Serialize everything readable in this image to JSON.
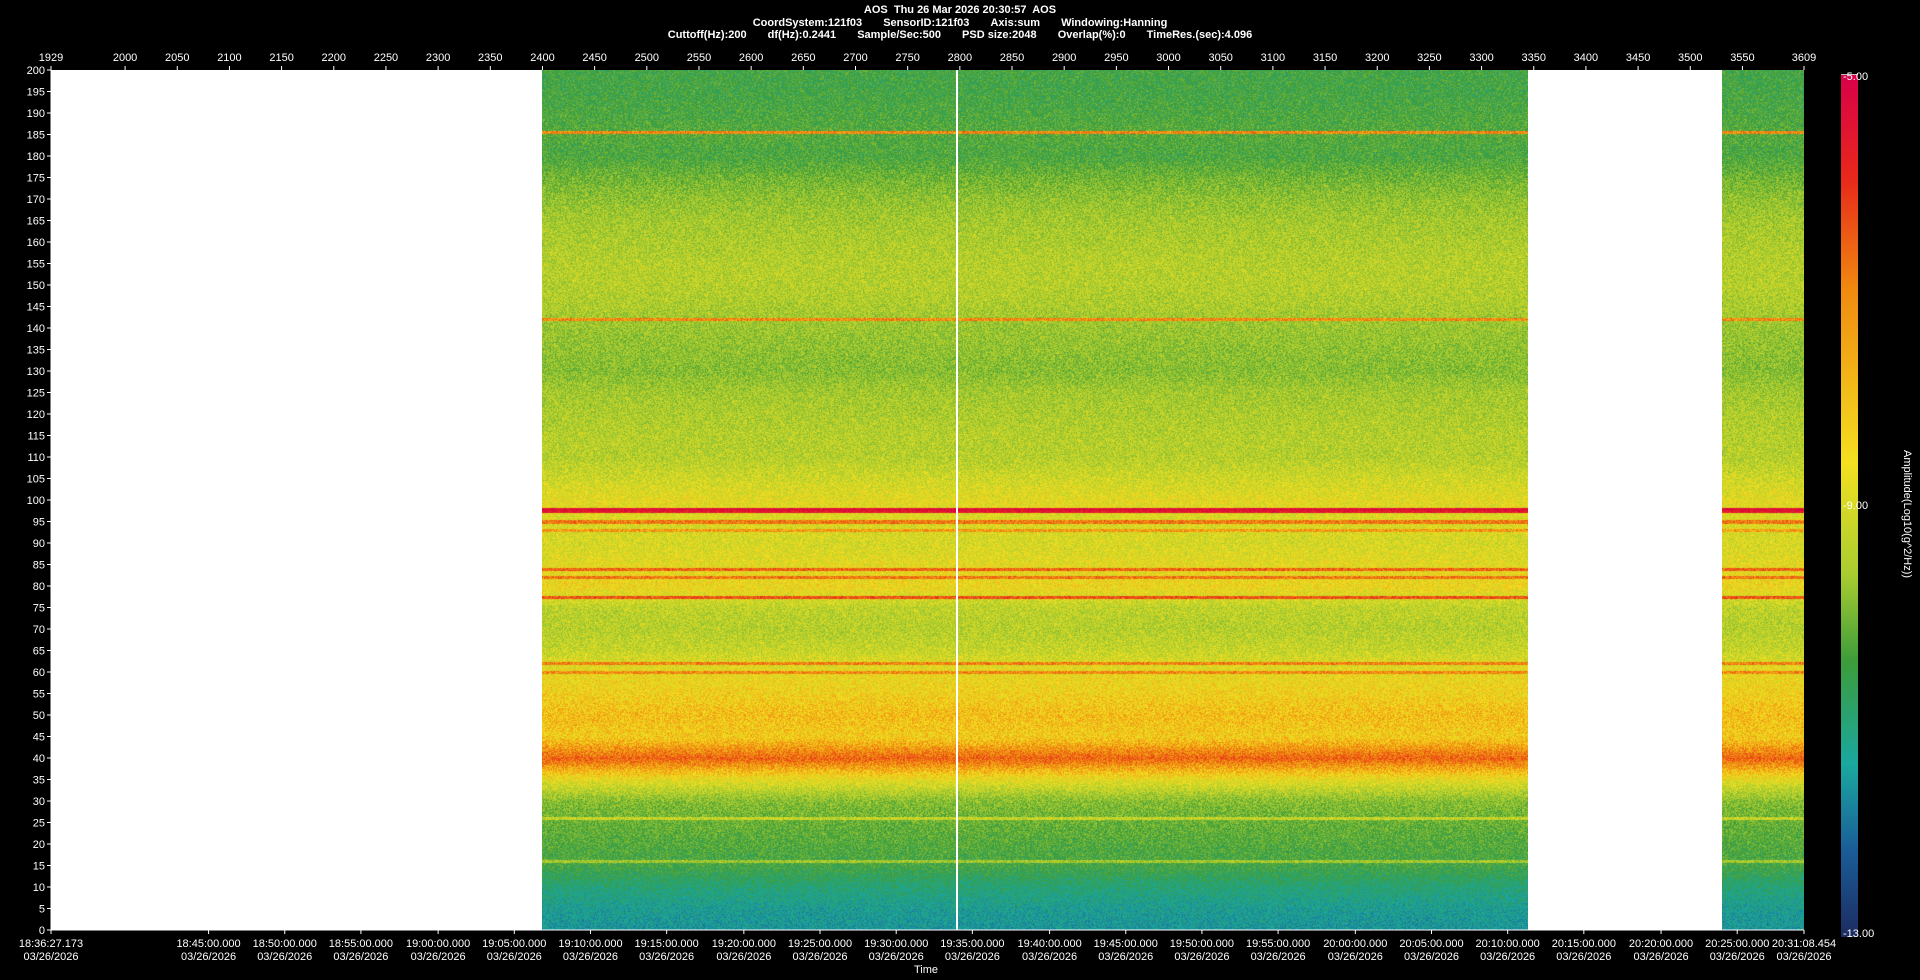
{
  "header": {
    "row1": [
      "AOS  Thu 26 Mar 2026 20:30:57  AOS"
    ],
    "row2": [
      "CoordSystem:121f03",
      "SensorID:121f03",
      "Axis:sum",
      "Windowing:Hanning"
    ],
    "row3": [
      "Cuttoff(Hz):200",
      "df(Hz):0.2441",
      "Sample/Sec:500",
      "PSD size:2048",
      "Overlap(%):0",
      "TimeRes.(sec):4.096"
    ]
  },
  "chart_data": {
    "type": "heatmap",
    "title": "AOS  Thu 26 Mar 2026 20:30:57  AOS",
    "xlabel": "Time",
    "ylabel": "",
    "ylim": [
      0,
      200
    ],
    "yticks": [
      0,
      5,
      10,
      15,
      20,
      25,
      30,
      35,
      40,
      45,
      50,
      55,
      60,
      65,
      70,
      75,
      80,
      85,
      90,
      95,
      100,
      105,
      110,
      115,
      120,
      125,
      130,
      135,
      140,
      145,
      150,
      155,
      160,
      165,
      170,
      175,
      180,
      185,
      190,
      195,
      200
    ],
    "top_axis": {
      "range": [
        1929,
        3609
      ],
      "ticks": [
        1929,
        2000,
        2050,
        2100,
        2150,
        2200,
        2250,
        2300,
        2350,
        2400,
        2450,
        2500,
        2550,
        2600,
        2650,
        2700,
        2750,
        2800,
        2850,
        2900,
        2950,
        3000,
        3050,
        3100,
        3150,
        3200,
        3250,
        3300,
        3350,
        3400,
        3450,
        3500,
        3550,
        3609
      ]
    },
    "bottom_axis": {
      "ticks": [
        {
          "value": 1929,
          "time": "18:36:27.173",
          "date": "03/26/2026"
        },
        {
          "value": 2080,
          "time": "18:45:00.000",
          "date": "03/26/2026"
        },
        {
          "value": 2153,
          "time": "18:50:00.000",
          "date": "03/26/2026"
        },
        {
          "value": 2226,
          "time": "18:55:00.000",
          "date": "03/26/2026"
        },
        {
          "value": 2300,
          "time": "19:00:00.000",
          "date": "03/26/2026"
        },
        {
          "value": 2373,
          "time": "19:05:00.000",
          "date": "03/26/2026"
        },
        {
          "value": 2446,
          "time": "19:10:00.000",
          "date": "03/26/2026"
        },
        {
          "value": 2519,
          "time": "19:15:00.000",
          "date": "03/26/2026"
        },
        {
          "value": 2593,
          "time": "19:20:00.000",
          "date": "03/26/2026"
        },
        {
          "value": 2666,
          "time": "19:25:00.000",
          "date": "03/26/2026"
        },
        {
          "value": 2739,
          "time": "19:30:00.000",
          "date": "03/26/2026"
        },
        {
          "value": 2812,
          "time": "19:35:00.000",
          "date": "03/26/2026"
        },
        {
          "value": 2886,
          "time": "19:40:00.000",
          "date": "03/26/2026"
        },
        {
          "value": 2959,
          "time": "19:45:00.000",
          "date": "03/26/2026"
        },
        {
          "value": 3032,
          "time": "19:50:00.000",
          "date": "03/26/2026"
        },
        {
          "value": 3105,
          "time": "19:55:00.000",
          "date": "03/26/2026"
        },
        {
          "value": 3179,
          "time": "20:00:00.000",
          "date": "03/26/2026"
        },
        {
          "value": 3252,
          "time": "20:05:00.000",
          "date": "03/26/2026"
        },
        {
          "value": 3325,
          "time": "20:10:00.000",
          "date": "03/26/2026"
        },
        {
          "value": 3398,
          "time": "20:15:00.000",
          "date": "03/26/2026"
        },
        {
          "value": 3472,
          "time": "20:20:00.000",
          "date": "03/26/2026"
        },
        {
          "value": 3545,
          "time": "20:25:00.000",
          "date": "03/26/2026"
        },
        {
          "value": 3609,
          "time": "20:31:08.454",
          "date": "03/26/2026"
        }
      ]
    },
    "data_segments": [
      [
        2400,
        3345
      ],
      [
        3530,
        3609
      ]
    ],
    "cursor_value": 2797,
    "colorbar": {
      "label": "Amplitude(Log10(g^2/Hz))",
      "min": -13.0,
      "max": -5.0,
      "tick_labels": [
        "-5.00",
        "-9.00",
        "-13.00"
      ],
      "colors": [
        "#d8004a",
        "#e8281a",
        "#f08a10",
        "#f4e020",
        "#a8cc30",
        "#3c9c3a",
        "#1aa8a0",
        "#1a5c98",
        "#1c2c60"
      ]
    },
    "frequency_profile": [
      {
        "hz": 0,
        "amp": -11.2
      },
      {
        "hz": 5,
        "amp": -11.0
      },
      {
        "hz": 10,
        "amp": -10.6
      },
      {
        "hz": 15,
        "amp": -10.0
      },
      {
        "hz": 20,
        "amp": -9.8
      },
      {
        "hz": 25,
        "amp": -9.6
      },
      {
        "hz": 30,
        "amp": -9.3
      },
      {
        "hz": 35,
        "amp": -8.2
      },
      {
        "hz": 40,
        "amp": -6.6
      },
      {
        "hz": 45,
        "amp": -7.8
      },
      {
        "hz": 50,
        "amp": -7.6
      },
      {
        "hz": 55,
        "amp": -7.9
      },
      {
        "hz": 60,
        "amp": -8.1
      },
      {
        "hz": 65,
        "amp": -8.6
      },
      {
        "hz": 70,
        "amp": -8.8
      },
      {
        "hz": 75,
        "amp": -8.7
      },
      {
        "hz": 80,
        "amp": -8.0
      },
      {
        "hz": 85,
        "amp": -8.2
      },
      {
        "hz": 90,
        "amp": -8.4
      },
      {
        "hz": 95,
        "amp": -8.3
      },
      {
        "hz": 100,
        "amp": -8.2
      },
      {
        "hz": 105,
        "amp": -8.5
      },
      {
        "hz": 110,
        "amp": -8.8
      },
      {
        "hz": 115,
        "amp": -8.8
      },
      {
        "hz": 120,
        "amp": -8.9
      },
      {
        "hz": 125,
        "amp": -9.0
      },
      {
        "hz": 130,
        "amp": -9.3
      },
      {
        "hz": 135,
        "amp": -9.2
      },
      {
        "hz": 140,
        "amp": -9.1
      },
      {
        "hz": 145,
        "amp": -8.9
      },
      {
        "hz": 150,
        "amp": -8.8
      },
      {
        "hz": 155,
        "amp": -8.8
      },
      {
        "hz": 160,
        "amp": -8.9
      },
      {
        "hz": 165,
        "amp": -9.0
      },
      {
        "hz": 170,
        "amp": -9.2
      },
      {
        "hz": 175,
        "amp": -9.5
      },
      {
        "hz": 180,
        "amp": -9.9
      },
      {
        "hz": 185,
        "amp": -9.8
      },
      {
        "hz": 190,
        "amp": -9.9
      },
      {
        "hz": 195,
        "amp": -10.0
      },
      {
        "hz": 200,
        "amp": -10.0
      }
    ],
    "tonal_lines": [
      {
        "hz": 185.5,
        "amp": -7.0
      },
      {
        "hz": 142,
        "amp": -7.0
      },
      {
        "hz": 98,
        "amp": -5.4
      },
      {
        "hz": 97.5,
        "amp": -5.6
      },
      {
        "hz": 95,
        "amp": -6.8
      },
      {
        "hz": 93,
        "amp": -7.2
      },
      {
        "hz": 84,
        "amp": -6.6
      },
      {
        "hz": 82,
        "amp": -6.8
      },
      {
        "hz": 77.5,
        "amp": -6.4
      },
      {
        "hz": 62,
        "amp": -6.9
      },
      {
        "hz": 60,
        "amp": -7.0
      },
      {
        "hz": 26,
        "amp": -8.6
      },
      {
        "hz": 16,
        "amp": -9.0
      }
    ]
  }
}
